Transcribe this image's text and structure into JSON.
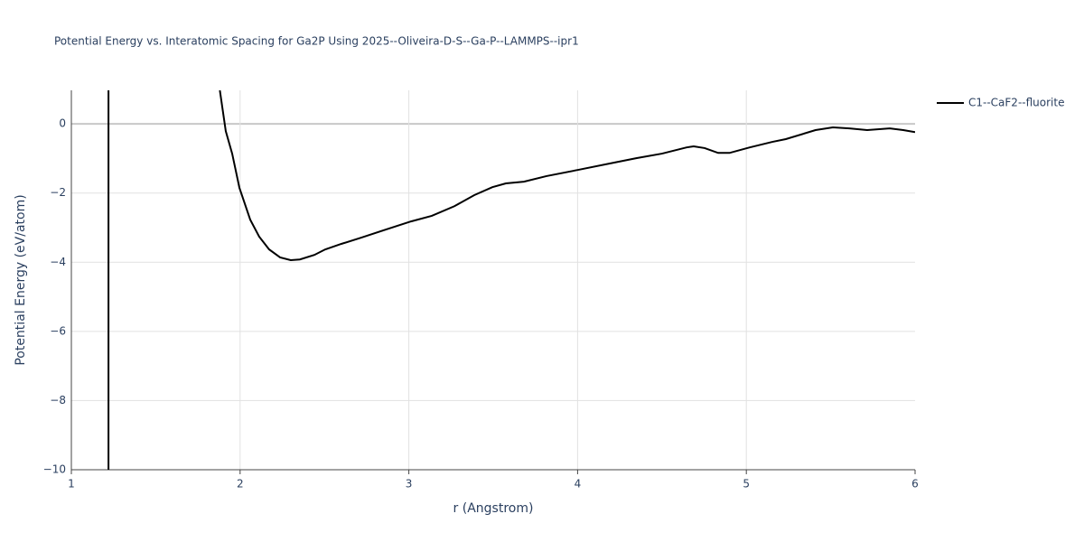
{
  "chart_data": {
    "type": "line",
    "title": "Potential Energy vs. Interatomic Spacing for Ga2P Using 2025--Oliveira-D-S--Ga-P--LAMMPS--ipr1",
    "xlabel": "r (Angstrom)",
    "ylabel": "Potential Energy (eV/atom)",
    "x": [
      1.88,
      1.915,
      1.953,
      1.996,
      2.06,
      2.113,
      2.172,
      2.237,
      2.3,
      2.354,
      2.44,
      2.504,
      2.6,
      2.718,
      2.879,
      3.013,
      3.136,
      3.27,
      3.388,
      3.495,
      3.575,
      3.682,
      3.816,
      4.003,
      4.217,
      4.351,
      4.5,
      4.646,
      4.688,
      4.753,
      4.833,
      4.9,
      5.02,
      5.154,
      5.234,
      5.41,
      5.513,
      5.61,
      5.716,
      5.85,
      5.93,
      6.0
    ],
    "series": [
      {
        "name": "C1--CaF2--fluorite",
        "color": "#000000",
        "values": [
          0.97,
          -0.21,
          -0.86,
          -1.85,
          -2.77,
          -3.26,
          -3.63,
          -3.86,
          -3.94,
          -3.92,
          -3.79,
          -3.63,
          -3.47,
          -3.29,
          -3.03,
          -2.82,
          -2.66,
          -2.38,
          -2.06,
          -1.83,
          -1.72,
          -1.67,
          -1.51,
          -1.33,
          -1.12,
          -0.99,
          -0.86,
          -0.68,
          -0.65,
          -0.7,
          -0.84,
          -0.84,
          -0.68,
          -0.52,
          -0.44,
          -0.18,
          -0.1,
          -0.13,
          -0.18,
          -0.13,
          -0.18,
          -0.24
        ]
      }
    ],
    "vline_x": 1.22,
    "xlim": [
      1,
      6
    ],
    "xticks": [
      1,
      2,
      3,
      4,
      5,
      6
    ],
    "ylim": [
      -10,
      0.97
    ],
    "yticks": [
      {
        "value": -10,
        "label": "−10"
      },
      {
        "value": -8,
        "label": "−8"
      },
      {
        "value": -6,
        "label": "−6"
      },
      {
        "value": -4,
        "label": "−4"
      },
      {
        "value": -2,
        "label": "−2"
      },
      0
    ],
    "grid": true,
    "legend": "top-right"
  }
}
